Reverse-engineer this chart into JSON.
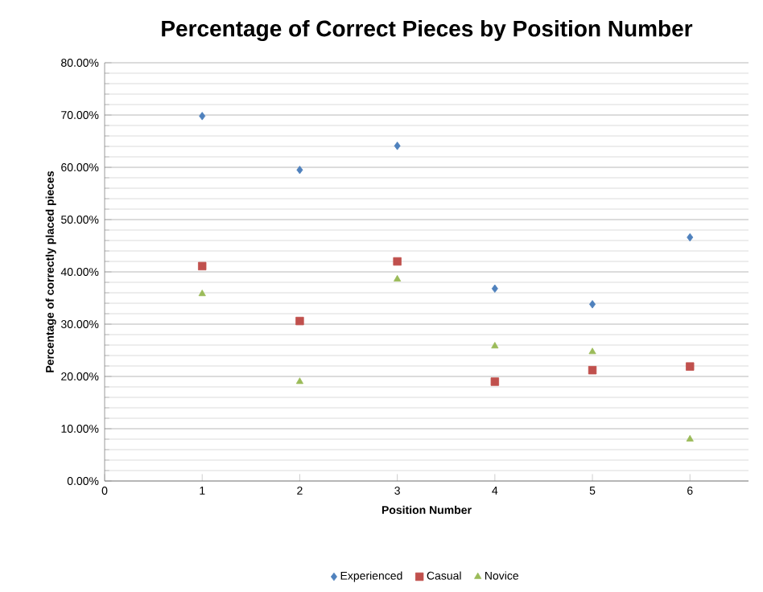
{
  "chart_data": {
    "type": "scatter",
    "title": "Percentage of Correct Pieces by Position Number",
    "xlabel": "Position Number",
    "ylabel": "Percentage of correctly placed  pieces",
    "x": [
      1,
      2,
      3,
      4,
      5,
      6
    ],
    "series": [
      {
        "name": "Experienced",
        "color": "#4f81bd",
        "marker": "diamond",
        "values": [
          69.8,
          59.5,
          64.1,
          36.8,
          33.8,
          46.6
        ]
      },
      {
        "name": "Casual",
        "color": "#c0504d",
        "marker": "square",
        "values": [
          41.1,
          30.6,
          42.0,
          19.0,
          21.2,
          21.9
        ]
      },
      {
        "name": "Novice",
        "color": "#9bbb59",
        "marker": "triangle",
        "values": [
          35.8,
          19.0,
          38.6,
          25.8,
          24.7,
          8.0
        ]
      }
    ],
    "xlim": [
      0,
      6.6
    ],
    "xticks": [
      0,
      1,
      2,
      3,
      4,
      5,
      6
    ],
    "ylim": [
      0,
      80
    ],
    "yticks": [
      {
        "value": 0,
        "label": "0.00%"
      },
      {
        "value": 10,
        "label": "10.00%"
      },
      {
        "value": 20,
        "label": "20.00%"
      },
      {
        "value": 30,
        "label": "30.00%"
      },
      {
        "value": 40,
        "label": "40.00%"
      },
      {
        "value": 50,
        "label": "50.00%"
      },
      {
        "value": 60,
        "label": "60.00%"
      },
      {
        "value": 70,
        "label": "70.00%"
      },
      {
        "value": 80,
        "label": "80.00%"
      }
    ],
    "grid": "y",
    "legend": "bottom"
  }
}
